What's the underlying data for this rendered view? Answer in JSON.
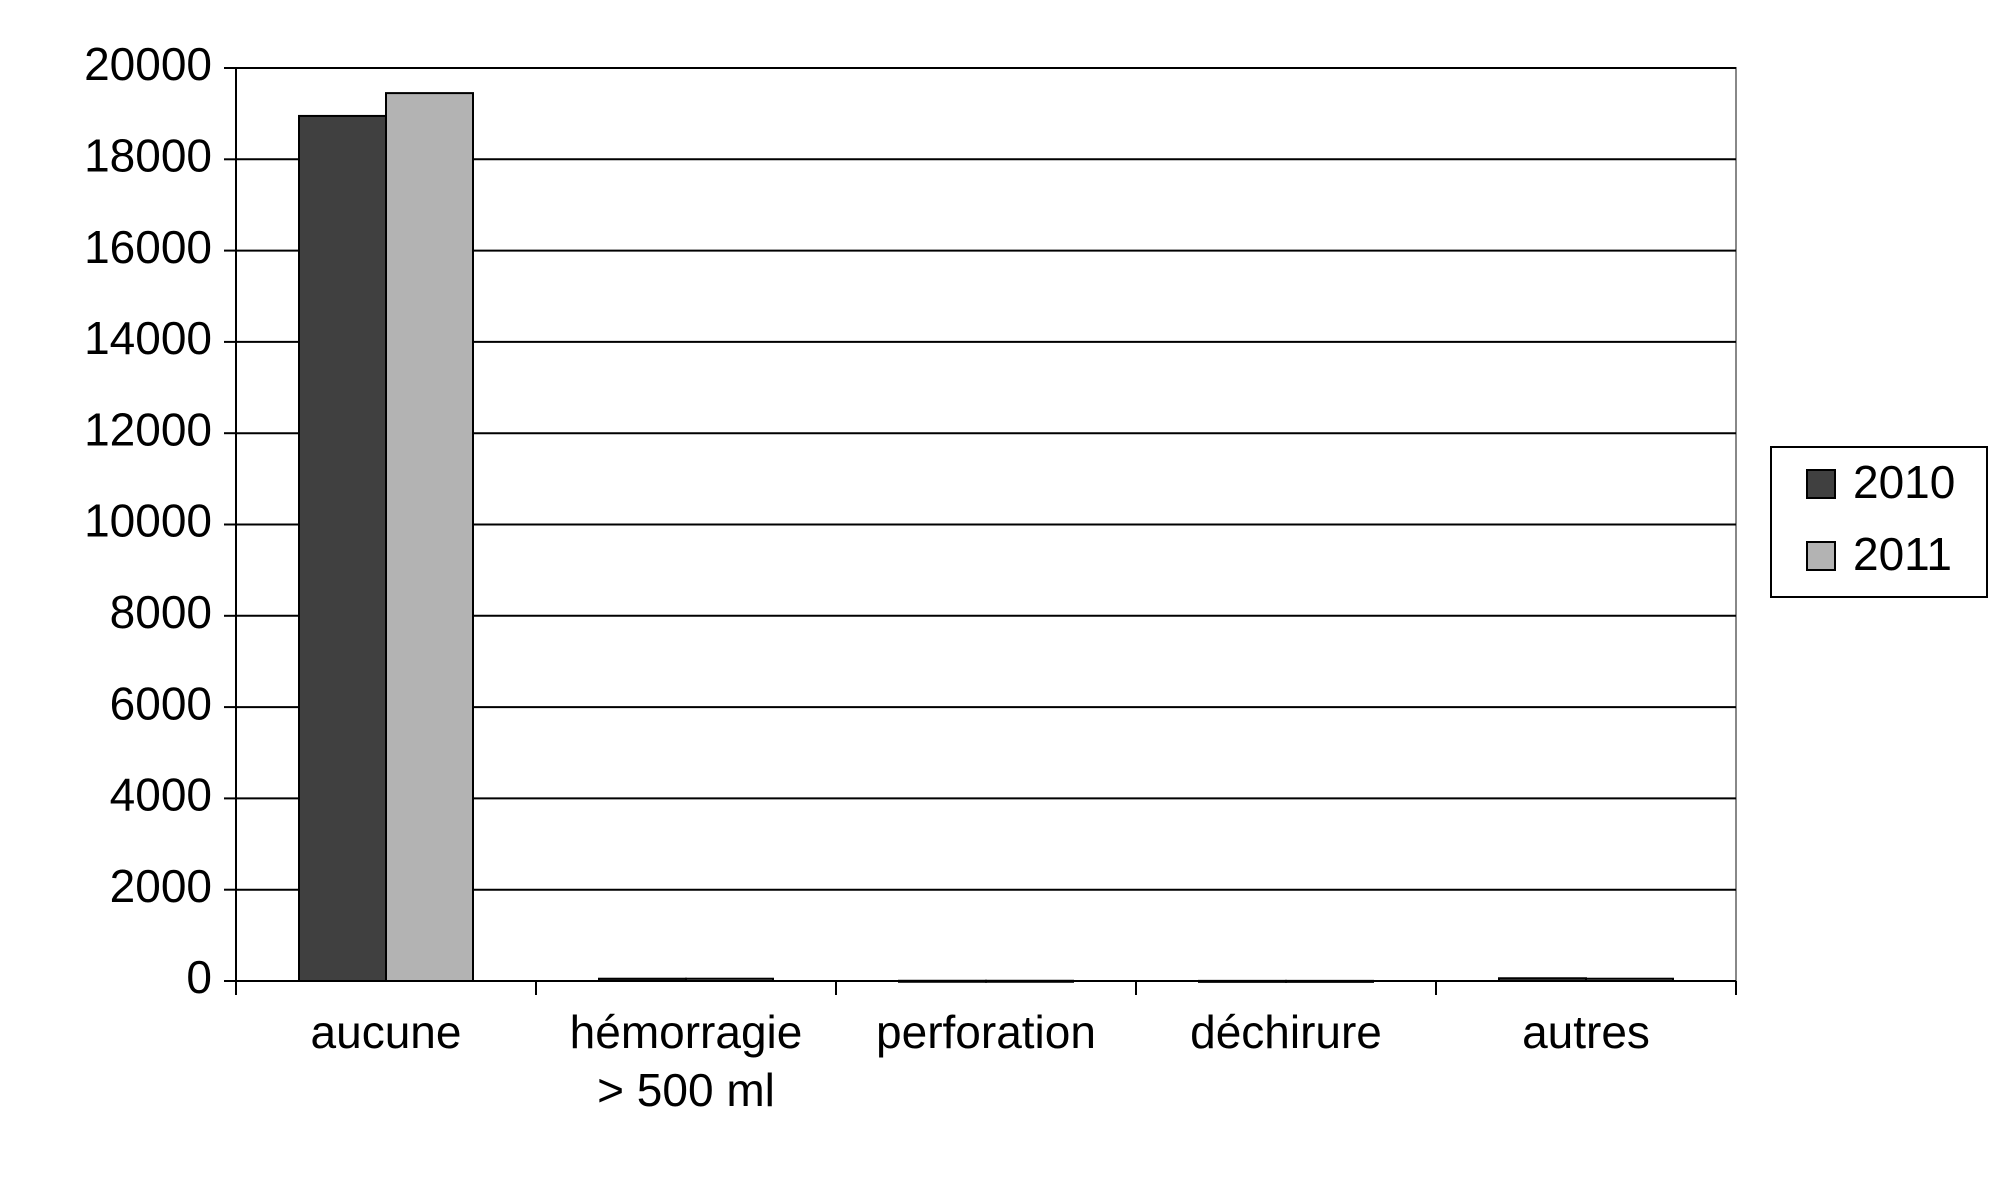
{
  "chart_data": {
    "type": "bar",
    "categories": [
      "aucune",
      "hémorragie\n> 500 ml",
      "perforation",
      "déchirure",
      "autres"
    ],
    "series": [
      {
        "name": "2010",
        "color": "#404040",
        "values": [
          18950,
          50,
          5,
          3,
          60
        ]
      },
      {
        "name": "2011",
        "color": "#b3b3b3",
        "values": [
          19450,
          50,
          5,
          3,
          50
        ]
      }
    ],
    "ylim": [
      0,
      20000
    ],
    "yticks": [
      0,
      2000,
      4000,
      6000,
      8000,
      10000,
      12000,
      14000,
      16000,
      18000,
      20000
    ],
    "grid": true,
    "legend": "right"
  }
}
